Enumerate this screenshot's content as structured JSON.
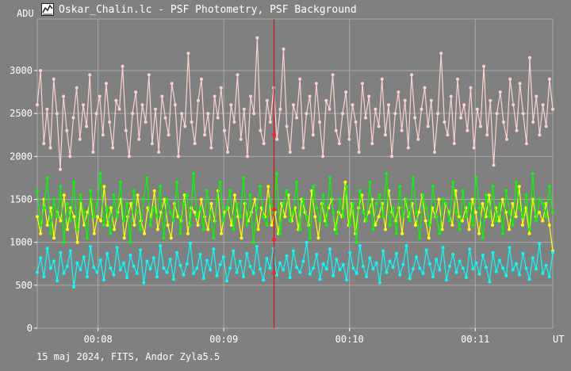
{
  "window": {
    "title": "Oskar_Chalin.lc - PSF Photometry, PSF Background",
    "icon": "chart-icon"
  },
  "footer": {
    "info": "15 maj 2024, FITS, Andor Zyla5.5"
  },
  "chart_data": {
    "type": "line",
    "title": "",
    "ylabel": "ADU",
    "xlabel": "UT",
    "ylim": [
      0,
      3600
    ],
    "xlim": [
      "00:07:31",
      "00:11:37"
    ],
    "y_ticks": [
      0,
      500,
      1000,
      1500,
      2000,
      2500,
      3000
    ],
    "x_ticks": [
      "00:08",
      "00:09",
      "00:10",
      "00:11"
    ],
    "grid": true,
    "cursor_x": "00:09:24",
    "cursor_values": [
      2250,
      1380,
      1030,
      640
    ],
    "colors": {
      "background": "#808080",
      "grid": "#aaaaaa",
      "cursor": "#e00000",
      "cursor_marker": "#ff2020"
    },
    "series": [
      {
        "color": "#ffd0d0",
        "x_start": "00:07:31",
        "x_end": "00:11:37",
        "values": [
          2600,
          3000,
          2150,
          2550,
          2100,
          2900,
          2500,
          1850,
          2700,
          2300,
          2000,
          2450,
          2800,
          2200,
          2600,
          2350,
          2950,
          2050,
          2500,
          2700,
          2250,
          2850,
          2400,
          2100,
          2650,
          2550,
          3050,
          2300,
          2000,
          2500,
          2750,
          2200,
          2600,
          2400,
          2950,
          2150,
          2550,
          2050,
          2700,
          2450,
          2250,
          2850,
          2600,
          2000,
          2500,
          2350,
          3200,
          2400,
          2150,
          2650,
          2900,
          2250,
          2500,
          2100,
          2700,
          2450,
          2800,
          2300,
          2050,
          2600,
          2400,
          2950,
          2200,
          2550,
          2000,
          2700,
          2500,
          3380,
          2300,
          2150,
          2650,
          2400,
          2800,
          2200,
          2550,
          3250,
          2350,
          2050,
          2600,
          2450,
          2900,
          2100,
          2500,
          2700,
          2250,
          2850,
          2400,
          2000,
          2650,
          2550,
          2950,
          2300,
          2150,
          2500,
          2750,
          2200,
          2600,
          2400,
          2050,
          2850,
          2450,
          2700,
          2150,
          2550,
          2350,
          2900,
          2250,
          2600,
          2000,
          2500,
          2750,
          2300,
          2650,
          2100,
          2950,
          2450,
          2200,
          2550,
          2800,
          2350,
          2650,
          2050,
          2500,
          3200,
          2400,
          2250,
          2700,
          2150,
          2900,
          2450,
          2600,
          2300,
          2800,
          2100,
          2550,
          2350,
          3050,
          2250,
          2650,
          1900,
          2500,
          2750,
          2400,
          2200,
          2900,
          2600,
          2300,
          2850,
          2500,
          2150,
          3150,
          2400,
          2700,
          2250,
          2600,
          2350,
          2900,
          2550
        ]
      },
      {
        "color": "#ffff00",
        "x_start": "00:07:31",
        "x_end": "00:11:37",
        "values": [
          1300,
          1100,
          1500,
          1200,
          1400,
          1050,
          1350,
          1250,
          1550,
          1150,
          1400,
          1300,
          1000,
          1450,
          1200,
          1350,
          1500,
          1100,
          1300,
          1250,
          1650,
          1200,
          1400,
          1150,
          1350,
          1500,
          1050,
          1300,
          1450,
          1200,
          1550,
          1250,
          1100,
          1400,
          1300,
          1600,
          1150,
          1350,
          1500,
          1200,
          1050,
          1450,
          1300,
          1250,
          1550,
          1100,
          1400,
          1350,
          1200,
          1500,
          1300,
          1150,
          1450,
          1250,
          1600,
          1100,
          1350,
          1400,
          1200,
          1550,
          1300,
          1050,
          1450,
          1250,
          1350,
          1500,
          1150,
          1400,
          1300,
          1650,
          1200,
          1350,
          1100,
          1450,
          1300,
          1550,
          1250,
          1400,
          1150,
          1500,
          1350,
          1200,
          1600,
          1300,
          1050,
          1450,
          1250,
          1400,
          1500,
          1150,
          1350,
          1300,
          1700,
          1200,
          1450,
          1100,
          1400,
          1550,
          1250,
          1350,
          1500,
          1200,
          1300,
          1450,
          1150,
          1600,
          1350,
          1250,
          1400,
          1100,
          1500,
          1300,
          1450,
          1200,
          1350,
          1550,
          1250,
          1050,
          1400,
          1300,
          1500,
          1150,
          1450,
          1350,
          1200,
          1600,
          1300,
          1250,
          1400,
          1150,
          1500,
          1350,
          1100,
          1450,
          1300,
          1550,
          1200,
          1400,
          1250,
          1500,
          1350,
          1150,
          1450,
          1300,
          1650,
          1200,
          1400,
          1100,
          1500,
          1300,
          1350,
          1250,
          1450,
          1200,
          900
        ]
      },
      {
        "color": "#00ff00",
        "x_start": "00:07:31",
        "x_end": "00:11:37",
        "values": [
          1600,
          1200,
          1400,
          1750,
          1100,
          1500,
          1300,
          1650,
          1000,
          1450,
          1250,
          1700,
          1150,
          1550,
          1350,
          1050,
          1600,
          1300,
          1450,
          1800,
          1200,
          1400,
          1100,
          1550,
          1300,
          1700,
          1250,
          1450,
          1000,
          1600,
          1350,
          1150,
          1500,
          1750,
          1200,
          1400,
          1300,
          1650,
          1050,
          1500,
          1350,
          1250,
          1700,
          1100,
          1450,
          1550,
          1200,
          1800,
          1300,
          1400,
          1150,
          1600,
          1350,
          1050,
          1500,
          1700,
          1250,
          1400,
          1600,
          1150,
          1450,
          1300,
          1750,
          1200,
          1550,
          1000,
          1400,
          1650,
          1300,
          1200,
          1500,
          1350,
          1800,
          1100,
          1450,
          1600,
          1250,
          1350,
          1700,
          1150,
          1500,
          1300,
          1050,
          1650,
          1400,
          1250,
          1550,
          1200,
          1750,
          1350,
          1100,
          1500,
          1300,
          1650,
          1200,
          1450,
          1000,
          1600,
          1350,
          1250,
          1700,
          1150,
          1450,
          1550,
          1300,
          1800,
          1200,
          1400,
          1100,
          1650,
          1300,
          1500,
          1250,
          1750,
          1350,
          1050,
          1550,
          1400,
          1200,
          1650,
          1300,
          1100,
          1500,
          1450,
          1250,
          1700,
          1350,
          1150,
          1600,
          1300,
          1450,
          1200,
          1750,
          1400,
          1050,
          1550,
          1300,
          1650,
          1250,
          1450,
          1100,
          1600,
          1350,
          1200,
          1700,
          1400,
          1300,
          1550,
          1150,
          1800,
          1250,
          1500,
          1450,
          1300,
          1650,
          1350
        ]
      },
      {
        "color": "#00ffff",
        "x_start": "00:07:31",
        "x_end": "00:11:37",
        "values": [
          650,
          820,
          600,
          930,
          700,
          780,
          550,
          880,
          640,
          720,
          900,
          480,
          760,
          680,
          830,
          600,
          950,
          710,
          650,
          790,
          560,
          870,
          700,
          620,
          940,
          680,
          760,
          590,
          850,
          720,
          640,
          910,
          530,
          780,
          690,
          820,
          600,
          960,
          700,
          650,
          800,
          570,
          880,
          730,
          620,
          750,
          990,
          640,
          700,
          860,
          580,
          790,
          680,
          920,
          610,
          740,
          830,
          550,
          700,
          900,
          650,
          780,
          600,
          870,
          720,
          640,
          950,
          690,
          560,
          810,
          700,
          930,
          620,
          760,
          680,
          840,
          590,
          900,
          710,
          650,
          780,
          1000,
          630,
          700,
          860,
          570,
          750,
          690,
          920,
          610,
          800,
          680,
          740,
          560,
          880,
          700,
          640,
          960,
          720,
          600,
          820,
          690,
          760,
          530,
          900,
          650,
          780,
          710,
          870,
          620,
          740,
          960,
          580,
          690,
          830,
          700,
          640,
          910,
          750,
          600,
          800,
          680,
          940,
          560,
          720,
          860,
          650,
          780,
          700,
          590,
          920,
          690,
          760,
          630,
          850,
          710,
          540,
          880,
          660,
          790,
          700,
          610,
          940,
          680,
          750,
          620,
          870,
          700,
          570,
          820,
          690,
          980,
          640,
          730,
          600,
          880
        ]
      }
    ]
  }
}
